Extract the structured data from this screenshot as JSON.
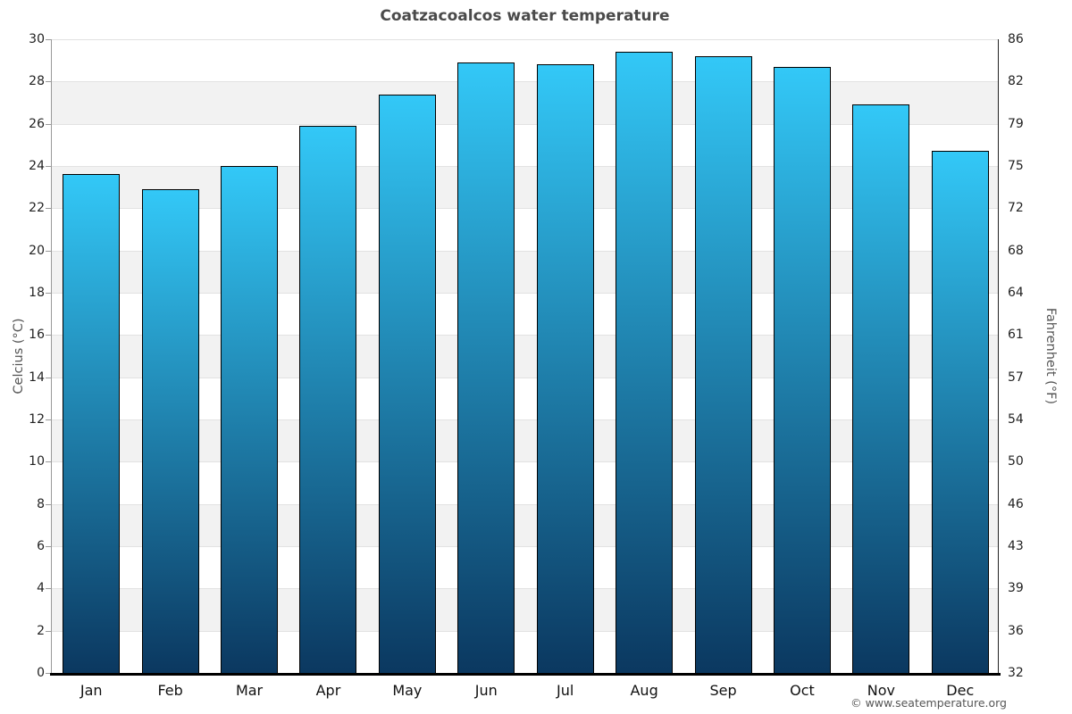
{
  "title": "Coatzacoalcos water temperature",
  "footer": {
    "credit": "© www.seatemperature.org"
  },
  "chart_data": {
    "type": "bar",
    "title": "Coatzacoalcos water temperature",
    "categories": [
      "Jan",
      "Feb",
      "Mar",
      "Apr",
      "May",
      "Jun",
      "Jul",
      "Aug",
      "Sep",
      "Oct",
      "Nov",
      "Dec"
    ],
    "values": [
      23.6,
      22.9,
      24.0,
      25.9,
      27.4,
      28.9,
      28.8,
      29.4,
      29.2,
      28.7,
      26.9,
      24.7
    ],
    "ylabel_left": "Celcius (°C)",
    "ylabel_right": "Fahrenheit (°F)",
    "ylim": [
      0,
      30
    ],
    "yticks_left": [
      0,
      2,
      4,
      6,
      8,
      10,
      12,
      14,
      16,
      18,
      20,
      22,
      24,
      26,
      28,
      30
    ],
    "yticks_right": [
      32,
      36,
      39,
      43,
      46,
      50,
      54,
      57,
      61,
      64,
      68,
      72,
      75,
      79,
      82,
      86
    ],
    "grid": "horizontal alternating shaded bands every 2 degrees C",
    "legend": false,
    "colors": {
      "bar_gradient_top": "#33c8f7",
      "bar_gradient_bottom": "#0b3860",
      "bar_border": "#000000",
      "band_shaded": "#f2f2f2",
      "band_plain": "#ffffff",
      "gridline": "#e2e2e2",
      "axis_left_spine": "#999999",
      "axis_right_spine": "#222222",
      "axis_bottom_line": "#000000",
      "title_text": "#4a4a4a",
      "tick_text": "#222222",
      "axis_label_text": "#555555",
      "footer_text": "#555555"
    }
  }
}
